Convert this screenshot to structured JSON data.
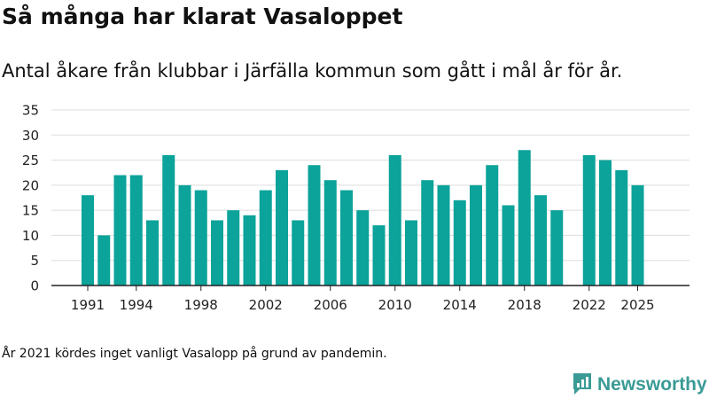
{
  "title": "Så många har klarat Vasaloppet",
  "subtitle": "Antal åkare från klubbar i Järfälla kommun som gått i mål år för år.",
  "note": "År 2021 kördes inget vanligt Vasalopp på grund av pandemin.",
  "brand": {
    "name": "Newsworthy",
    "color": "#3a9b95"
  },
  "colors": {
    "bar": "#0ba39a",
    "grid": "#dddddd",
    "axis": "#222222"
  },
  "chart_data": {
    "type": "bar",
    "title": "Så många har klarat Vasaloppet",
    "xlabel": "",
    "ylabel": "",
    "ylim": [
      0,
      35
    ],
    "yticks": [
      0,
      5,
      10,
      15,
      20,
      25,
      30,
      35
    ],
    "xticks": [
      "1991",
      "1994",
      "1998",
      "2002",
      "2006",
      "2010",
      "2014",
      "2018",
      "2022",
      "2025"
    ],
    "grid": true,
    "categories": [
      "1991",
      "1992",
      "1993",
      "1994",
      "1995",
      "1996",
      "1997",
      "1998",
      "1999",
      "2000",
      "2001",
      "2002",
      "2003",
      "2004",
      "2005",
      "2006",
      "2007",
      "2008",
      "2009",
      "2010",
      "2011",
      "2012",
      "2013",
      "2014",
      "2015",
      "2016",
      "2017",
      "2018",
      "2019",
      "2020",
      "2021",
      "2022",
      "2023",
      "2024",
      "2025"
    ],
    "values": [
      18,
      10,
      22,
      22,
      13,
      26,
      20,
      19,
      13,
      15,
      14,
      19,
      23,
      13,
      24,
      21,
      19,
      15,
      12,
      26,
      13,
      21,
      20,
      17,
      20,
      24,
      16,
      27,
      18,
      15,
      null,
      26,
      25,
      23,
      20
    ]
  }
}
